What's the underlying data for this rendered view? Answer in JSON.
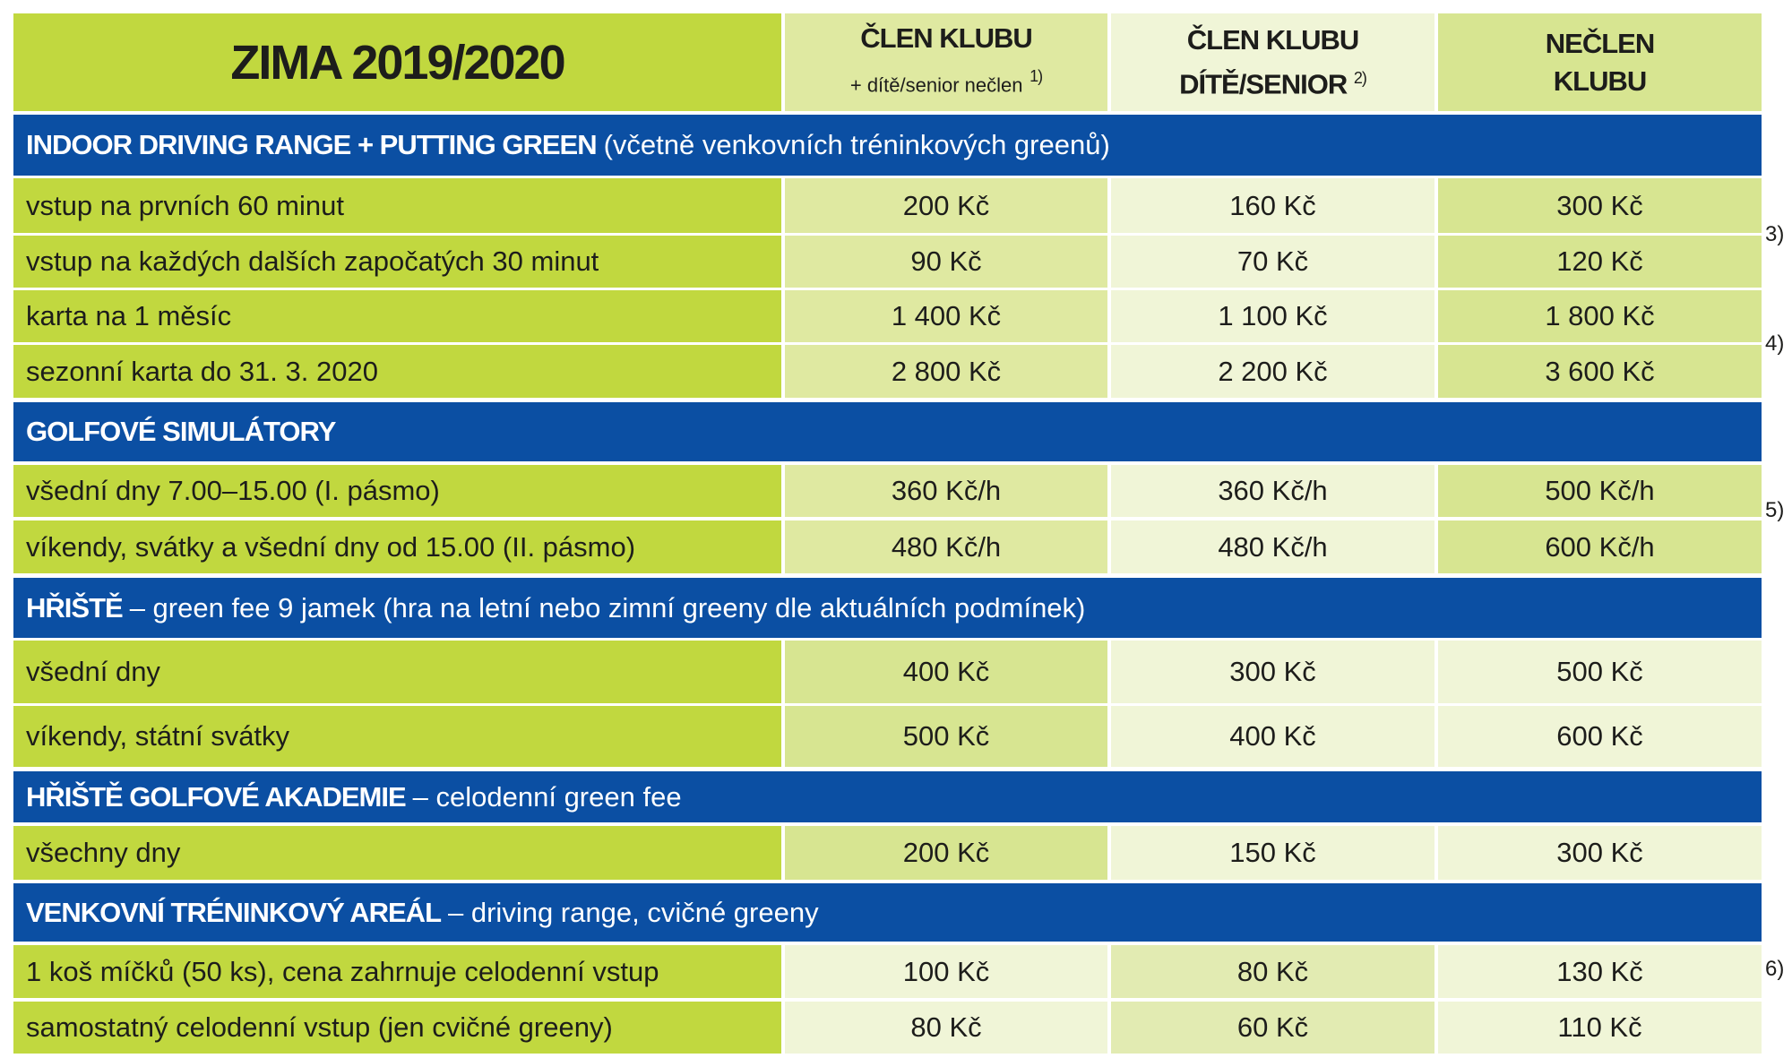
{
  "header": {
    "title": "ZIMA 2019/2020",
    "col1_line1": "ČLEN KLUBU",
    "col1_line2": "+ dítě/senior nečlen",
    "col1_note": "1)",
    "col2_line1": "ČLEN KLUBU",
    "col2_line2": "DÍTĚ/SENIOR",
    "col2_note": "2)",
    "col3_line1": "NEČLEN",
    "col3_line2": "KLUBU"
  },
  "sections": [
    {
      "title": "INDOOR DRIVING RANGE + PUTTING GREEN",
      "subtitle": "(včetně venkovních tréninkových greenů)",
      "rows": [
        {
          "label": "vstup na prvních 60 minut",
          "values": [
            "200 Kč",
            "160 Kč",
            "300 Kč"
          ]
        },
        {
          "label": "vstup na každých dalších započatých 30 minut",
          "values": [
            "90 Kč",
            "70 Kč",
            "120 Kč"
          ]
        },
        {
          "label": "karta na 1 měsíc",
          "values": [
            "1 400 Kč",
            "1 100 Kč",
            "1 800 Kč"
          ]
        },
        {
          "label": "sezonní karta do 31. 3. 2020",
          "values": [
            "2 800 Kč",
            "2 200 Kč",
            "3 600 Kč"
          ]
        }
      ]
    },
    {
      "title": "GOLFOVÉ SIMULÁTORY",
      "subtitle": "",
      "rows": [
        {
          "label": "všední dny 7.00–15.00 (I. pásmo)",
          "values": [
            "360 Kč/h",
            "360 Kč/h",
            "500 Kč/h"
          ]
        },
        {
          "label": "víkendy, svátky a všední dny od 15.00 (II. pásmo)",
          "values": [
            "480 Kč/h",
            "480 Kč/h",
            "600 Kč/h"
          ]
        }
      ]
    },
    {
      "title": "HŘIŠTĚ",
      "subtitle": "– green fee 9 jamek (hra na letní nebo zimní greeny dle aktuálních podmínek)",
      "rows": [
        {
          "label": "všední dny",
          "values": [
            "400 Kč",
            "300 Kč",
            "500 Kč"
          ]
        },
        {
          "label": "víkendy, státní svátky",
          "values": [
            "500 Kč",
            "400 Kč",
            "600 Kč"
          ]
        }
      ]
    },
    {
      "title": "HŘIŠTĚ GOLFOVÉ AKADEMIE",
      "subtitle": "– celodenní green fee",
      "rows": [
        {
          "label": "všechny dny",
          "values": [
            "200 Kč",
            "150 Kč",
            "300 Kč"
          ]
        }
      ]
    },
    {
      "title": "VENKOVNÍ TRÉNINKOVÝ AREÁL",
      "subtitle": "– driving range, cvičné greeny",
      "rows": [
        {
          "label": "1 koš míčků (50 ks), cena zahrnuje celodenní vstup",
          "values": [
            "100 Kč",
            "80 Kč",
            "130 Kč"
          ]
        },
        {
          "label": "samostatný celodenní vstup (jen cvičné greeny)",
          "values": [
            "80 Kč",
            "60 Kč",
            "110 Kč"
          ]
        }
      ]
    }
  ],
  "notes": [
    "3)",
    "4)",
    "5)",
    "6)"
  ],
  "colors": {
    "blue": "#0b4fa3",
    "green": "#c1d83f",
    "light": "#f0f5d7"
  }
}
